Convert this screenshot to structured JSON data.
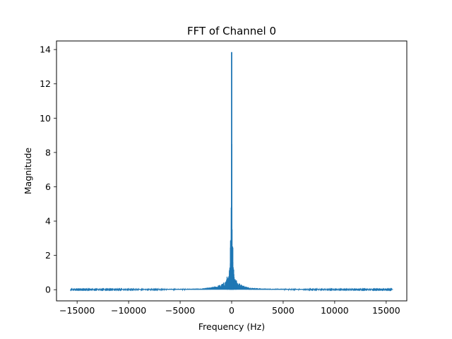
{
  "chart_data": {
    "type": "line",
    "title": "FFT of Channel 0",
    "xlabel": "Frequency (Hz)",
    "ylabel": "Magnitude",
    "xlim": [
      -17000,
      17000
    ],
    "ylim": [
      -0.65,
      14.5
    ],
    "xticks": [
      -15000,
      -10000,
      -5000,
      0,
      5000,
      10000,
      15000
    ],
    "xtick_labels": [
      "−15000",
      "−10000",
      "−5000",
      "0",
      "5000",
      "10000",
      "15000"
    ],
    "yticks": [
      0,
      2,
      4,
      6,
      8,
      10,
      12,
      14
    ],
    "ytick_labels": [
      "0",
      "2",
      "4",
      "6",
      "8",
      "10",
      "12",
      "14"
    ],
    "grid": false,
    "legend": "none",
    "series": [
      {
        "color": "#1f77b4",
        "x_range": [
          -15625,
          15625
        ],
        "baseline_noise": 0.03,
        "points": [
          [
            -15625,
            0.02
          ],
          [
            -8000,
            0.03
          ],
          [
            -3000,
            0.05
          ],
          [
            -2000,
            0.1
          ],
          [
            -1500,
            0.15
          ],
          [
            -1000,
            0.22
          ],
          [
            -600,
            0.35
          ],
          [
            -400,
            0.6
          ],
          [
            -300,
            0.5
          ],
          [
            -200,
            0.9
          ],
          [
            -150,
            1.05
          ],
          [
            -100,
            2.45
          ],
          [
            -50,
            2.3
          ],
          [
            0,
            13.85
          ],
          [
            50,
            2.3
          ],
          [
            100,
            2.45
          ],
          [
            150,
            1.05
          ],
          [
            200,
            0.9
          ],
          [
            300,
            0.5
          ],
          [
            400,
            0.55
          ],
          [
            600,
            0.3
          ],
          [
            1000,
            0.2
          ],
          [
            1500,
            0.12
          ],
          [
            2000,
            0.08
          ],
          [
            3000,
            0.05
          ],
          [
            8000,
            0.03
          ],
          [
            15625,
            0.02
          ]
        ]
      }
    ]
  }
}
